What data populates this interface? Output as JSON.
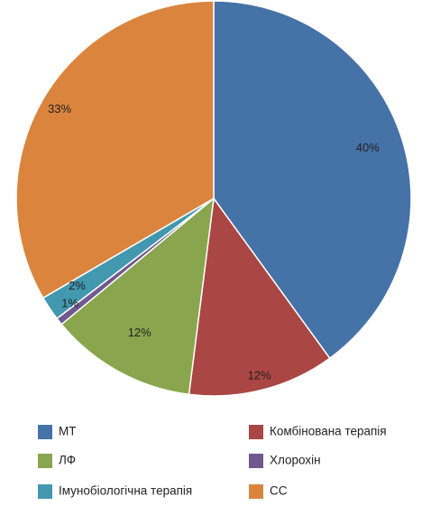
{
  "chart_data": {
    "type": "pie",
    "title": "",
    "start_angle_deg": 0,
    "direction": "clockwise",
    "legend_position": "bottom",
    "slices": [
      {
        "name": "МТ",
        "value": 40,
        "label": "40%",
        "color": "#4572a7"
      },
      {
        "name": "Комбінована терапія",
        "value": 12,
        "label": "12%",
        "color": "#aa4643"
      },
      {
        "name": "ЛФ",
        "value": 12,
        "label": "12%",
        "color": "#89a54e"
      },
      {
        "name": "Хлорохін",
        "value": 0.6,
        "label": "1%",
        "color": "#71588f"
      },
      {
        "name": "Імунобіологічна терапія",
        "value": 2,
        "label": "2%",
        "color": "#4198af"
      },
      {
        "name": "СС",
        "value": 33.4,
        "label": "33%",
        "color": "#db843d"
      }
    ],
    "legend": [
      {
        "name": "МТ",
        "color": "#4572a7"
      },
      {
        "name": "Комбінована терапія",
        "color": "#aa4643"
      },
      {
        "name": "ЛФ",
        "color": "#89a54e"
      },
      {
        "name": "Хлорохін",
        "color": "#71588f"
      },
      {
        "name": "Імунобіологічна терапія",
        "color": "#4198af"
      },
      {
        "name": "СС",
        "color": "#db843d"
      }
    ]
  }
}
